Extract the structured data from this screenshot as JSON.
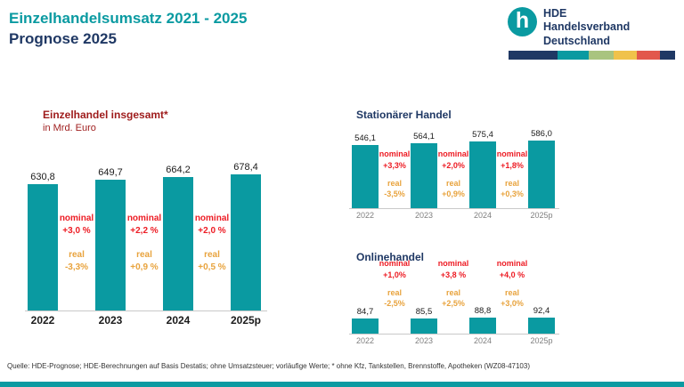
{
  "header": {
    "title_line1": "Einzelhandelsumsatz 2021 - 2025",
    "title_line2": "Prognose 2025",
    "logo": {
      "glyph": "h",
      "org_acronym": "HDE",
      "org_line1": "Handelsverband",
      "org_line2": "Deutschland"
    },
    "brand_strip_colors": [
      "#1f3864",
      "#0a9aa1",
      "#a9c47f",
      "#f0c24b",
      "#e2574c",
      "#1f3864"
    ]
  },
  "labels": {
    "nominal": "nominal",
    "real": "real"
  },
  "chart_data": [
    {
      "id": "einzelhandel-insgesamt",
      "type": "bar",
      "title": "Einzelhandel insgesamt*",
      "subtitle": "in Mrd. Euro",
      "categories": [
        "2022",
        "2023",
        "2024",
        "2025p"
      ],
      "values": [
        630.8,
        649.7,
        664.2,
        678.4
      ],
      "value_labels": [
        "630,8",
        "649,7",
        "664,2",
        "678,4"
      ],
      "ylim": [
        0,
        700
      ],
      "grid": false,
      "annotations": [
        {
          "nominal": "+3,0 %",
          "real": "-3,3%"
        },
        {
          "nominal": "+2,2 %",
          "real": "+0,9 %"
        },
        {
          "nominal": "+2,0 %",
          "real": "+0,5 %"
        }
      ]
    },
    {
      "id": "stationaerer-handel",
      "type": "bar",
      "title": "Stationärer Handel",
      "subtitle": "",
      "categories": [
        "2022",
        "2023",
        "2024",
        "2025p"
      ],
      "values": [
        546.1,
        564.1,
        575.4,
        586.0
      ],
      "value_labels": [
        "546,1",
        "564,1",
        "575,4",
        "586,0"
      ],
      "ylim": [
        0,
        600
      ],
      "grid": false,
      "annotations": [
        {
          "nominal": "+3,3%",
          "real": "-3,5%"
        },
        {
          "nominal": "+2,0%",
          "real": "+0,9%"
        },
        {
          "nominal": "+1,8%",
          "real": "+0,3%"
        }
      ]
    },
    {
      "id": "onlinehandel",
      "type": "bar",
      "title": "Onlinehandel",
      "subtitle": "",
      "categories": [
        "2022",
        "2023",
        "2024",
        "2025p"
      ],
      "values": [
        84.7,
        85.5,
        88.8,
        92.4
      ],
      "value_labels": [
        "84,7",
        "85,5",
        "88,8",
        "92,4"
      ],
      "ylim": [
        0,
        400
      ],
      "grid": false,
      "annotations": [
        {
          "nominal": "+1,0%",
          "real": "-2,5%"
        },
        {
          "nominal": "+3,8 %",
          "real": "+2,5%"
        },
        {
          "nominal": "+4,0 %",
          "real": "+3,0%"
        }
      ]
    }
  ],
  "colors": {
    "teal": "#0a9aa1",
    "navy": "#1f3864",
    "dark_red": "#9e1b1b",
    "nominal_red": "#ed1c24",
    "real_orange": "#e8a33d"
  },
  "footer": {
    "source": "Quelle: HDE-Prognose; HDE-Berechnungen auf Basis Destatis; ohne Umsatzsteuer; vorläufige Werte; * ohne Kfz, Tankstellen, Brennstoffe, Apotheken (WZ08-47103)"
  }
}
